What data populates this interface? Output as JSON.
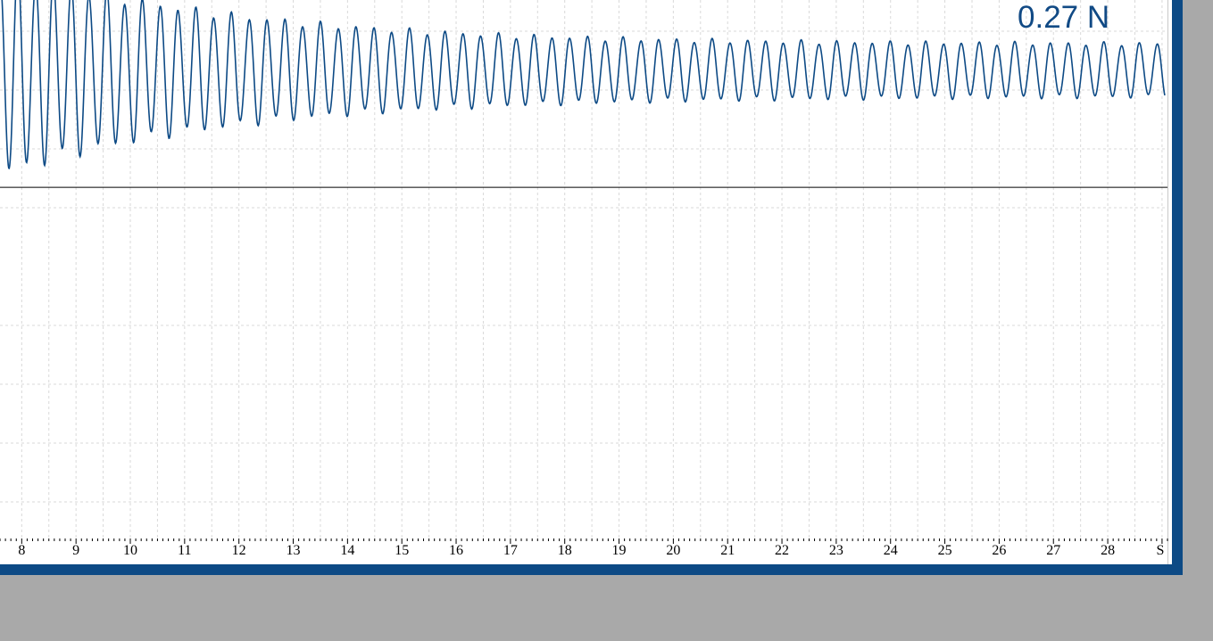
{
  "readout": {
    "value_text": "0.27 N"
  },
  "colors": {
    "frame": "#0d4a85",
    "trace": "#0d4a85",
    "grid": "#d9d9d9",
    "background": "#a9a9a9"
  },
  "chart_data": {
    "type": "line",
    "title": "",
    "xlabel": "S",
    "ylabel": "",
    "xlim": [
      7.6,
      29.1
    ],
    "ylim": [
      -3.0,
      1.6
    ],
    "grid": true,
    "x_ticks": [
      8,
      9,
      10,
      11,
      12,
      13,
      14,
      15,
      16,
      17,
      18,
      19,
      20,
      21,
      22,
      23,
      24,
      25,
      26,
      27,
      28
    ],
    "axis_end_label": "S",
    "signal": {
      "baseline": 1.0,
      "initial_amplitude": 0.88,
      "final_amplitude": 0.22,
      "decay_rate": 0.058,
      "cycles_per_second": 3.05,
      "x_start": 7.6,
      "x_end": 29.05
    },
    "series": [
      {
        "values_note": "",
        "color": "#0d4a85"
      }
    ]
  }
}
